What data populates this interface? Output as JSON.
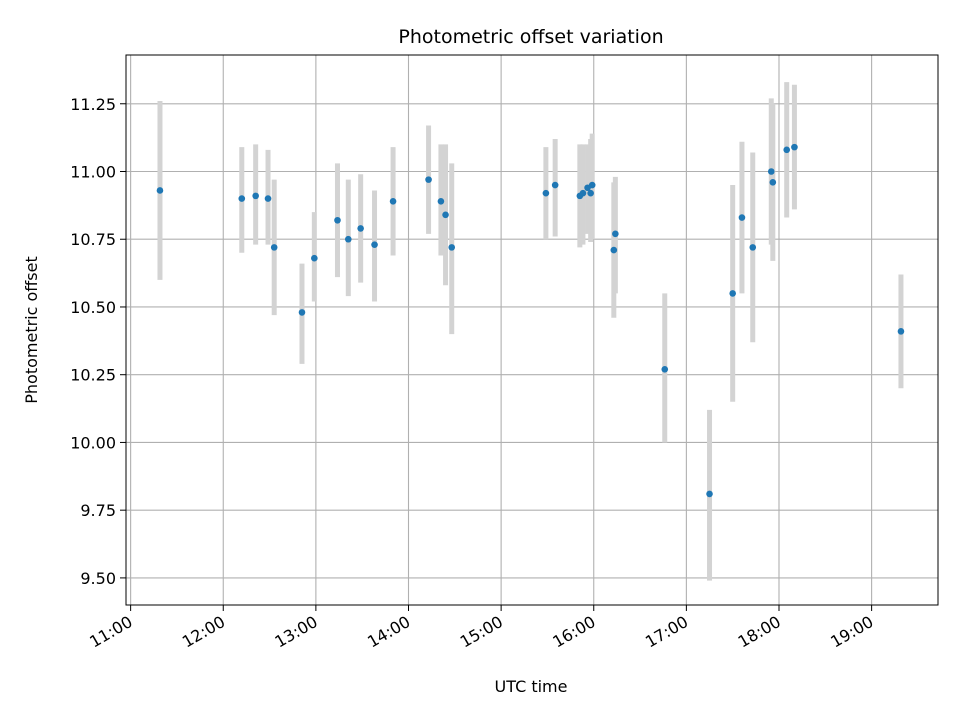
{
  "chart_data": {
    "type": "scatter",
    "title": "Photometric offset variation",
    "xlabel": "UTC time",
    "ylabel": "Photometric offset",
    "x_axis": {
      "kind": "time",
      "range": [
        "10:57",
        "19:43"
      ],
      "tick_labels": [
        "11:00",
        "12:00",
        "13:00",
        "14:00",
        "15:00",
        "16:00",
        "17:00",
        "18:00",
        "19:00"
      ]
    },
    "y_axis": {
      "range": [
        9.4,
        11.43
      ],
      "tick_labels": [
        "9.50",
        "9.75",
        "10.00",
        "10.25",
        "10.50",
        "10.75",
        "11.00",
        "11.25"
      ]
    },
    "grid": true,
    "colors": {
      "point": "#1f77b4",
      "errorbar": "#d3d3d3",
      "grid": "#b0b0b0"
    },
    "series": [
      {
        "points": [
          {
            "x": "11:19",
            "y": 10.93,
            "yerr_low": 10.6,
            "yerr_high": 11.26
          },
          {
            "x": "12:12",
            "y": 10.9,
            "yerr_low": 10.7,
            "yerr_high": 11.09
          },
          {
            "x": "12:21",
            "y": 10.91,
            "yerr_low": 10.73,
            "yerr_high": 11.1
          },
          {
            "x": "12:29",
            "y": 10.9,
            "yerr_low": 10.73,
            "yerr_high": 11.08
          },
          {
            "x": "12:33",
            "y": 10.72,
            "yerr_low": 10.47,
            "yerr_high": 10.97
          },
          {
            "x": "12:51",
            "y": 10.48,
            "yerr_low": 10.29,
            "yerr_high": 10.66
          },
          {
            "x": "12:59",
            "y": 10.68,
            "yerr_low": 10.52,
            "yerr_high": 10.85
          },
          {
            "x": "13:14",
            "y": 10.82,
            "yerr_low": 10.61,
            "yerr_high": 11.03
          },
          {
            "x": "13:21",
            "y": 10.75,
            "yerr_low": 10.54,
            "yerr_high": 10.97
          },
          {
            "x": "13:29",
            "y": 10.79,
            "yerr_low": 10.59,
            "yerr_high": 10.99
          },
          {
            "x": "13:38",
            "y": 10.73,
            "yerr_low": 10.52,
            "yerr_high": 10.93
          },
          {
            "x": "13:50",
            "y": 10.89,
            "yerr_low": 10.69,
            "yerr_high": 11.09
          },
          {
            "x": "14:13",
            "y": 10.97,
            "yerr_low": 10.77,
            "yerr_high": 11.17
          },
          {
            "x": "14:21",
            "y": 10.89,
            "yerr_low": 10.69,
            "yerr_high": 11.1
          },
          {
            "x": "14:24",
            "y": 10.84,
            "yerr_low": 10.58,
            "yerr_high": 11.1
          },
          {
            "x": "14:28",
            "y": 10.72,
            "yerr_low": 10.4,
            "yerr_high": 11.03
          },
          {
            "x": "15:29",
            "y": 10.92,
            "yerr_low": 10.75,
            "yerr_high": 11.09
          },
          {
            "x": "15:35",
            "y": 10.95,
            "yerr_low": 10.76,
            "yerr_high": 11.12
          },
          {
            "x": "15:51",
            "y": 10.91,
            "yerr_low": 10.72,
            "yerr_high": 11.1
          },
          {
            "x": "15:53",
            "y": 10.92,
            "yerr_low": 10.73,
            "yerr_high": 11.1
          },
          {
            "x": "15:56",
            "y": 10.94,
            "yerr_low": 10.77,
            "yerr_high": 11.1
          },
          {
            "x": "15:58",
            "y": 10.92,
            "yerr_low": 10.74,
            "yerr_high": 11.12
          },
          {
            "x": "15:59",
            "y": 10.95,
            "yerr_low": 10.75,
            "yerr_high": 11.14
          },
          {
            "x": "16:13",
            "y": 10.71,
            "yerr_low": 10.46,
            "yerr_high": 10.96
          },
          {
            "x": "16:14",
            "y": 10.77,
            "yerr_low": 10.55,
            "yerr_high": 10.98
          },
          {
            "x": "16:46",
            "y": 10.27,
            "yerr_low": 10.0,
            "yerr_high": 10.55
          },
          {
            "x": "17:15",
            "y": 9.81,
            "yerr_low": 9.49,
            "yerr_high": 10.12
          },
          {
            "x": "17:30",
            "y": 10.55,
            "yerr_low": 10.15,
            "yerr_high": 10.95
          },
          {
            "x": "17:36",
            "y": 10.83,
            "yerr_low": 10.55,
            "yerr_high": 11.11
          },
          {
            "x": "17:43",
            "y": 10.72,
            "yerr_low": 10.37,
            "yerr_high": 11.07
          },
          {
            "x": "17:55",
            "y": 11.0,
            "yerr_low": 10.73,
            "yerr_high": 11.27
          },
          {
            "x": "17:56",
            "y": 10.96,
            "yerr_low": 10.67,
            "yerr_high": 11.25
          },
          {
            "x": "18:05",
            "y": 11.08,
            "yerr_low": 10.83,
            "yerr_high": 11.33
          },
          {
            "x": "18:10",
            "y": 11.09,
            "yerr_low": 10.86,
            "yerr_high": 11.32
          },
          {
            "x": "19:19",
            "y": 10.41,
            "yerr_low": 10.2,
            "yerr_high": 10.62
          }
        ]
      }
    ]
  }
}
